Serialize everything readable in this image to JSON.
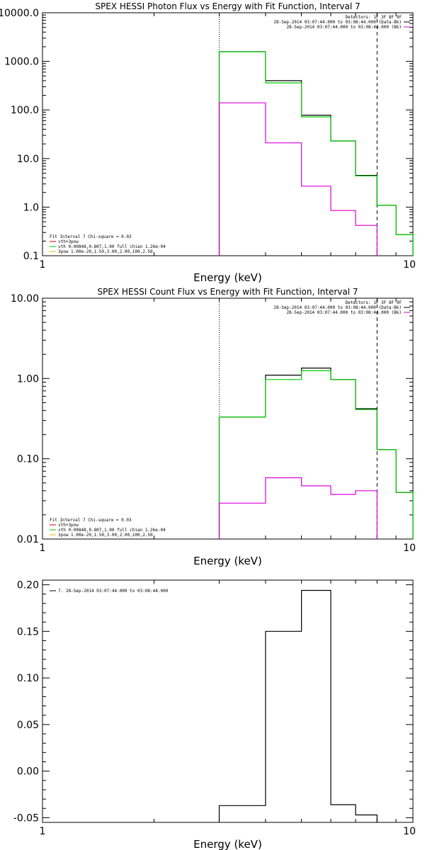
{
  "chart_data": [
    {
      "type": "line",
      "title": "SPEX HESSI Photon Flux vs Energy with Fit Function, Interval 7",
      "xlabel": "Energy (keV)",
      "ylabel": "",
      "xscale": "log",
      "yscale": "log",
      "xlim": [
        1,
        10
      ],
      "ylim": [
        0.1,
        10000
      ],
      "xticks": [
        {
          "v": 1,
          "label": "1"
        },
        {
          "v": 10,
          "label": "10"
        }
      ],
      "yticks": [
        {
          "v": 0.1,
          "label": "0.1"
        },
        {
          "v": 1,
          "label": "1.0"
        },
        {
          "v": 10,
          "label": "10.0"
        },
        {
          "v": 100,
          "label": "100.0"
        },
        {
          "v": 1000,
          "label": "1000.0"
        },
        {
          "v": 10000,
          "label": "10000.0"
        }
      ],
      "vlines": [
        {
          "x": 3.0,
          "style": "dotted"
        },
        {
          "x": 8.0,
          "style": "dashed"
        }
      ],
      "series": [
        {
          "color": "#000000",
          "edges": [
            3.0,
            4.0,
            5.0,
            6.0,
            7.0,
            8.0,
            9.0,
            10.0
          ],
          "values": [
            1580,
            400,
            78,
            23,
            4.5,
            1.1,
            0.27
          ]
        },
        {
          "color": "#00cc00",
          "edges": [
            3.0,
            4.0,
            5.0,
            6.0,
            7.0,
            8.0,
            9.0,
            10.0
          ],
          "values": [
            1580,
            360,
            72,
            23,
            4.4,
            1.1,
            0.27
          ]
        },
        {
          "color": "#dd00dd",
          "edges": [
            3.0,
            4.0,
            5.0,
            6.0,
            7.0,
            8.0
          ],
          "values": [
            140,
            21,
            2.7,
            0.85,
            0.42
          ]
        }
      ],
      "legend_right": {
        "position": "top-right",
        "lines": [
          {
            "text": "Detectors: 1F 3F 8F 9F",
            "color": ""
          },
          {
            "text": "28-Sep-2014 03:07:44.000 to 03:08:44.000 (Data-Bk)",
            "color": "#000000"
          },
          {
            "text": "28-Sep-2014 03:07:44.000 to 03:08:44.000 (Bk)",
            "color": "#dd00dd"
          }
        ]
      },
      "legend_left": {
        "position": "bottom-left",
        "lines": [
          {
            "text": "Fit Interval 7   Chi-square = 0.03",
            "color": ""
          },
          {
            "text": "vth+3pow",
            "color": "#cc0000"
          },
          {
            "text": "vth 0.00848,0.807,1.00  full chian 1.26e-04",
            "color": "#00cc00"
          },
          {
            "text": "3pow 1.00e-20,1.50,3.00,2.00,100,2.50",
            "color": "#ddbb00"
          }
        ]
      }
    },
    {
      "type": "line",
      "title": "SPEX HESSI Count Flux vs Energy with Fit Function, Interval 7",
      "xlabel": "Energy (keV)",
      "ylabel": "",
      "xscale": "log",
      "yscale": "log",
      "xlim": [
        1,
        10
      ],
      "ylim": [
        0.01,
        10
      ],
      "xticks": [
        {
          "v": 1,
          "label": "1"
        },
        {
          "v": 10,
          "label": "10"
        }
      ],
      "yticks": [
        {
          "v": 0.01,
          "label": "0.01"
        },
        {
          "v": 0.1,
          "label": "0.10"
        },
        {
          "v": 1,
          "label": "1.00"
        },
        {
          "v": 10,
          "label": "10.00"
        }
      ],
      "vlines": [
        {
          "x": 3.0,
          "style": "dotted"
        },
        {
          "x": 8.0,
          "style": "dashed"
        }
      ],
      "series": [
        {
          "color": "#000000",
          "edges": [
            3.0,
            4.0,
            5.0,
            6.0,
            7.0,
            8.0,
            9.0,
            10.0
          ],
          "values": [
            0.33,
            1.1,
            1.35,
            0.97,
            0.42,
            0.13,
            0.038
          ]
        },
        {
          "color": "#00cc00",
          "edges": [
            3.0,
            4.0,
            5.0,
            6.0,
            7.0,
            8.0,
            9.0,
            10.0
          ],
          "values": [
            0.33,
            0.97,
            1.25,
            0.97,
            0.41,
            0.13,
            0.038
          ]
        },
        {
          "color": "#dd00dd",
          "edges": [
            3.0,
            4.0,
            5.0,
            6.0,
            7.0,
            8.0
          ],
          "values": [
            0.028,
            0.058,
            0.046,
            0.036,
            0.04
          ]
        }
      ],
      "legend_right": {
        "position": "top-right",
        "lines": [
          {
            "text": "Detectors: 1F 3F 8F 9F",
            "color": ""
          },
          {
            "text": "28-Sep-2014 03:07:44.000 to 03:08:44.000 (Data-Bk)",
            "color": "#000000"
          },
          {
            "text": "28-Sep-2014 03:07:44.000 to 03:08:44.000 (Bk)",
            "color": "#dd00dd"
          }
        ]
      },
      "legend_left": {
        "position": "bottom-left",
        "lines": [
          {
            "text": "Fit Interval 7   Chi-square = 0.03",
            "color": ""
          },
          {
            "text": "vth+3pow",
            "color": "#cc0000"
          },
          {
            "text": "vth 0.00848,0.807,1.00  full chian 1.26e-04",
            "color": "#00cc00"
          },
          {
            "text": "3pow 1.00e-20,1.50,3.00,2.00,100,2.50",
            "color": "#ddbb00"
          }
        ]
      }
    },
    {
      "type": "line",
      "title": "",
      "xlabel": "Energy (keV)",
      "ylabel": "",
      "xscale": "log",
      "yscale": "linear",
      "xlim": [
        1,
        10
      ],
      "ylim": [
        -0.055,
        0.205
      ],
      "xticks": [
        {
          "v": 1,
          "label": "1"
        },
        {
          "v": 10,
          "label": "10"
        }
      ],
      "yticks": [
        {
          "v": -0.05,
          "label": "-0.05"
        },
        {
          "v": 0.0,
          "label": "0.00"
        },
        {
          "v": 0.05,
          "label": "0.05"
        },
        {
          "v": 0.1,
          "label": "0.10"
        },
        {
          "v": 0.15,
          "label": "0.15"
        },
        {
          "v": 0.2,
          "label": "0.20"
        }
      ],
      "vlines": [],
      "series": [
        {
          "color": "#000000",
          "edges": [
            3.0,
            4.0,
            5.0,
            6.0,
            7.0,
            8.0
          ],
          "values": [
            -0.037,
            0.15,
            0.194,
            -0.036,
            -0.047
          ]
        }
      ],
      "legend_right": {
        "position": "top-right",
        "lines": []
      },
      "legend_left": {
        "position": "top-left",
        "lines": [
          {
            "text": "7. 28-Sep-2014 03:07:44.000 to 03:08:44.000",
            "color": "#000000"
          }
        ]
      }
    }
  ]
}
